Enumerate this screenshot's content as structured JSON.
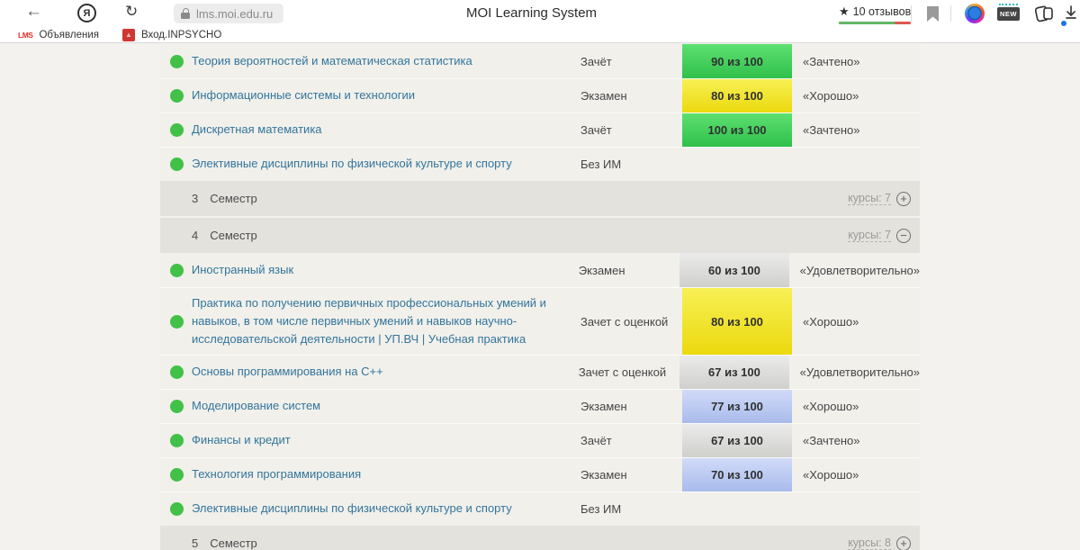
{
  "browser": {
    "url": "lms.moi.edu.ru",
    "page_title": "MOI Learning System",
    "reviews_label": "10 отзывов",
    "new_badge_label": "NEW",
    "reviews_bar_colors": {
      "positive": "#64b766",
      "negative": "#e25550"
    },
    "bookmarks_bar": [
      {
        "favicon_text": "LMS",
        "label": "Объявления"
      },
      {
        "favicon_text": "▲",
        "label": "Вход.INPSYCHO"
      }
    ]
  },
  "grades_table": {
    "colors": {
      "green_badge": "#30c04c",
      "yellow_badge": "#ebd90e",
      "silver_badge": "#cfcfcc",
      "blue_badge": "#a9bbec",
      "status_dot": "#41c147",
      "course_link": "#33759c"
    },
    "rows": [
      {
        "type": "course",
        "name": "Теория вероятностей и математическая статистика",
        "control": "Зачёт",
        "score": "90 из 100",
        "score_style": "green",
        "grade": "«Зачтено»"
      },
      {
        "type": "course",
        "name": "Информационные системы и технологии",
        "control": "Экзамен",
        "score": "80 из 100",
        "score_style": "yellow",
        "grade": "«Хорошо»"
      },
      {
        "type": "course",
        "name": "Дискретная математика",
        "control": "Зачёт",
        "score": "100 из 100",
        "score_style": "green",
        "grade": "«Зачтено»"
      },
      {
        "type": "course",
        "name": "Элективные дисциплины по физической культуре и спорту",
        "control": "Без ИМ",
        "score": "",
        "score_style": "",
        "grade": ""
      },
      {
        "type": "semester",
        "number": "3",
        "label": "Семестр",
        "courses_label": "курсы: 7",
        "toggle": "plus"
      },
      {
        "type": "semester",
        "number": "4",
        "label": "Семестр",
        "courses_label": "курсы: 7",
        "toggle": "minus"
      },
      {
        "type": "course",
        "name": "Иностранный язык",
        "control": "Экзамен",
        "score": "60 из 100",
        "score_style": "silver",
        "grade": "«Удовлетворительно»"
      },
      {
        "type": "course",
        "tall": true,
        "name": "Практика по получению первичных профессиональных умений и навыков, в том числе первичных умений и навыков научно-исследовательской деятельности | УП.ВЧ | Учебная практика",
        "control": "Зачет с оценкой",
        "score": "80 из 100",
        "score_style": "yellow",
        "grade": "«Хорошо»"
      },
      {
        "type": "course",
        "name": "Основы программирования на C++",
        "control": "Зачет с оценкой",
        "score": "67 из 100",
        "score_style": "silver",
        "grade": "«Удовлетворительно»"
      },
      {
        "type": "course",
        "name": "Моделирование систем",
        "control": "Экзамен",
        "score": "77 из 100",
        "score_style": "blue",
        "grade": "«Хорошо»"
      },
      {
        "type": "course",
        "name": "Финансы и кредит",
        "control": "Зачёт",
        "score": "67 из 100",
        "score_style": "silver",
        "grade": "«Зачтено»"
      },
      {
        "type": "course",
        "name": "Технология программирования",
        "control": "Экзамен",
        "score": "70 из 100",
        "score_style": "blue",
        "grade": "«Хорошо»"
      },
      {
        "type": "course",
        "name": "Элективные дисциплины по физической культуре и спорту",
        "control": "Без ИМ",
        "score": "",
        "score_style": "",
        "grade": ""
      },
      {
        "type": "semester",
        "number": "5",
        "label": "Семестр",
        "courses_label": "курсы: 8",
        "toggle": "plus"
      }
    ]
  }
}
